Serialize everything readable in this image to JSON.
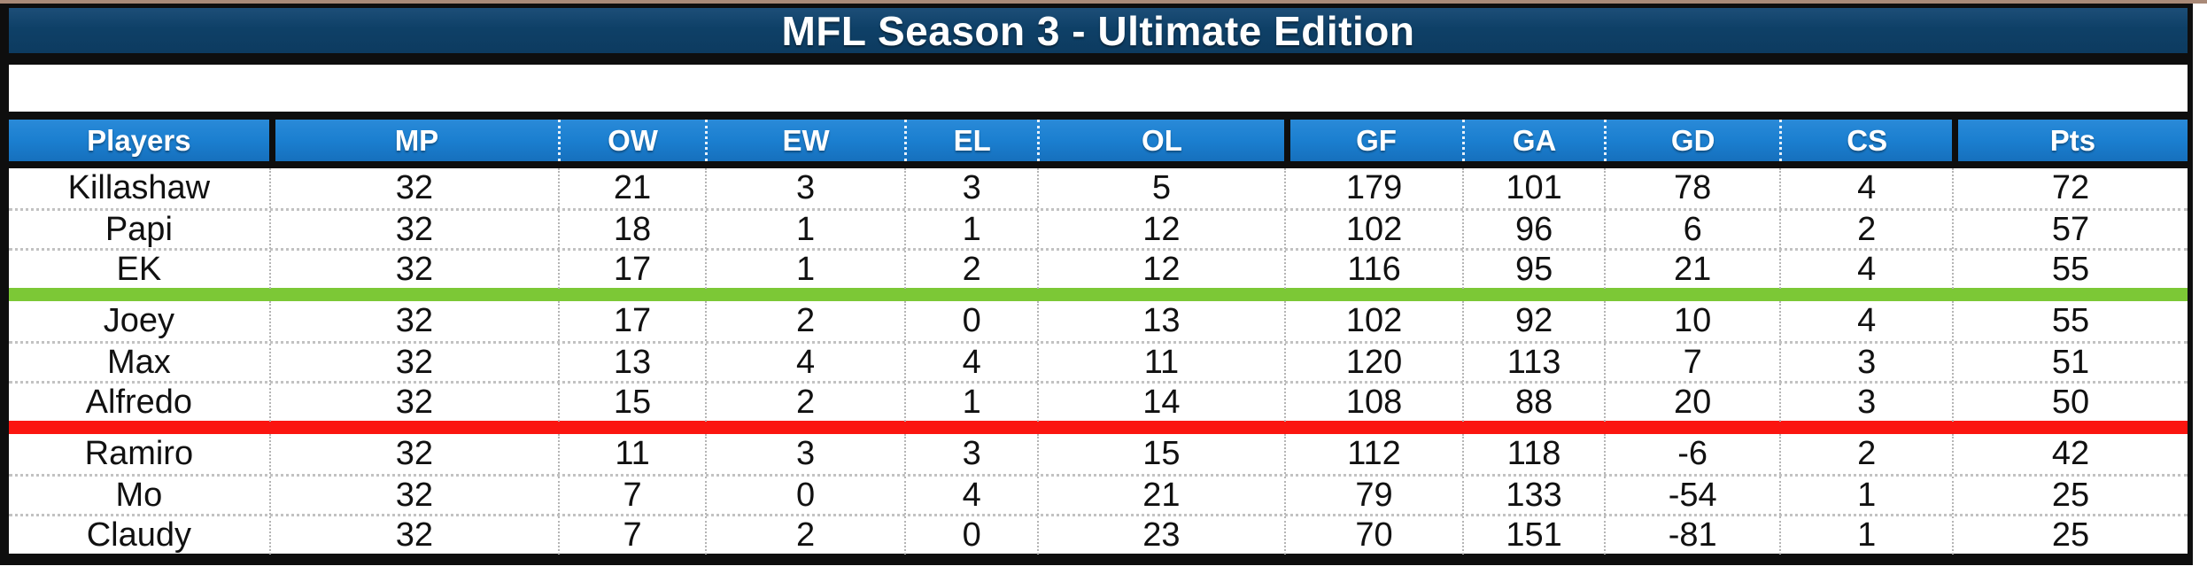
{
  "title": "MFL Season 3 - Ultimate Edition",
  "colors": {
    "title_bg": "#0e4067",
    "header_bg": "#1b7fd0",
    "promotion_green": "#7cc836",
    "relegation_red": "#fb1510",
    "frame_black": "#0e0e0e"
  },
  "table": {
    "columns": [
      "Players",
      "MP",
      "OW",
      "EW",
      "EL",
      "OL",
      "GF",
      "GA",
      "GD",
      "CS",
      "Pts"
    ],
    "rows": [
      [
        "Killashaw",
        32,
        21,
        3,
        3,
        5,
        179,
        101,
        78,
        4,
        72
      ],
      [
        "Papi",
        32,
        18,
        1,
        1,
        12,
        102,
        96,
        6,
        2,
        57
      ],
      [
        "EK",
        32,
        17,
        1,
        2,
        12,
        116,
        95,
        21,
        4,
        55
      ],
      [
        "Joey",
        32,
        17,
        2,
        0,
        13,
        102,
        92,
        10,
        4,
        55
      ],
      [
        "Max",
        32,
        13,
        4,
        4,
        11,
        120,
        113,
        7,
        3,
        51
      ],
      [
        "Alfredo",
        32,
        15,
        2,
        1,
        14,
        108,
        88,
        20,
        3,
        50
      ],
      [
        "Ramiro",
        32,
        11,
        3,
        3,
        15,
        112,
        118,
        -6,
        2,
        42
      ],
      [
        "Mo",
        32,
        7,
        0,
        4,
        21,
        79,
        133,
        -54,
        1,
        25
      ],
      [
        "Claudy",
        32,
        7,
        2,
        0,
        23,
        70,
        151,
        -81,
        1,
        25
      ]
    ],
    "row_separators": [
      {
        "after_row": 2,
        "color": "promotion_green",
        "name": "green-divider-line"
      },
      {
        "after_row": 5,
        "color": "relegation_red",
        "name": "red-divider-line"
      }
    ]
  }
}
